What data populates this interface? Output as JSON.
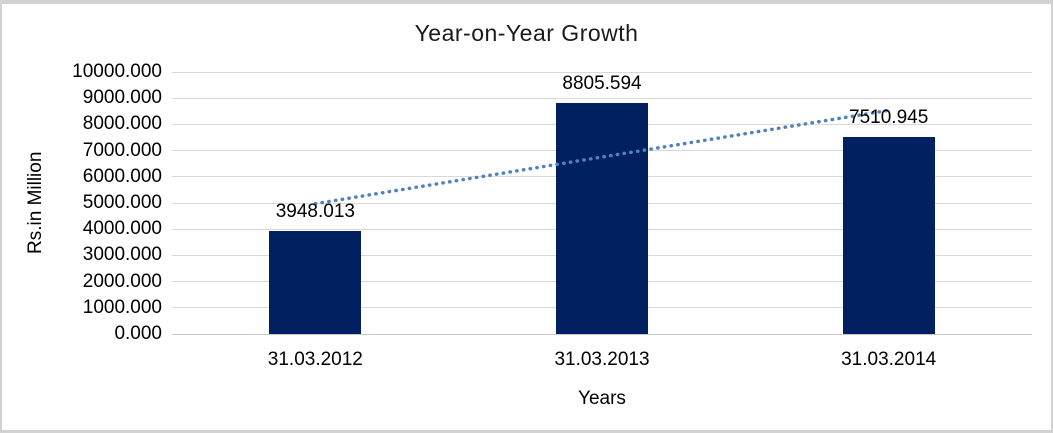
{
  "window": {
    "background": "#ffffff",
    "border_color": "#d2d2d2"
  },
  "chart_data": {
    "type": "bar",
    "title": "Year-on-Year Growth",
    "xlabel": "Years",
    "ylabel": "Rs.in Million",
    "categories": [
      "31.03.2012",
      "31.03.2013",
      "31.03.2014"
    ],
    "values": [
      3948.013,
      8805.594,
      7510.945
    ],
    "value_labels": [
      "3948.013",
      "8805.594",
      "7510.945"
    ],
    "ylim": [
      0,
      10000
    ],
    "ytick_step": 1000,
    "ytick_labels": [
      "10000.000",
      "9000.000",
      "8000.000",
      "7000.000",
      "6000.000",
      "5000.000",
      "4000.000",
      "3000.000",
      "2000.000",
      "1000.000",
      "0.000"
    ],
    "grid": true,
    "legend": "none",
    "bar_color": "#002060",
    "gridline_color": "#d9d9d9",
    "axis_line_color": "#c8c8c8",
    "text_color": "#000000",
    "title_color": "#1a1a1a",
    "trendline": {
      "type": "linear",
      "style": "dotted",
      "color": "#4f81bd"
    }
  }
}
